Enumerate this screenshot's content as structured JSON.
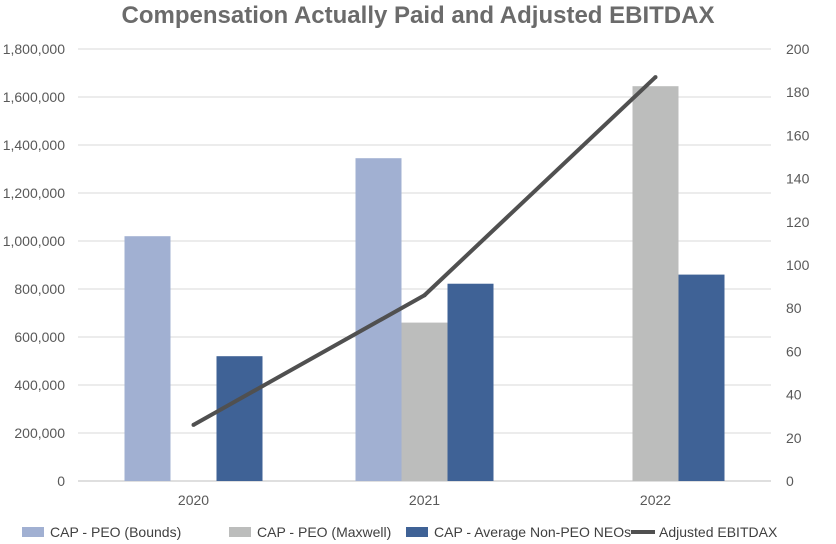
{
  "chart_data": {
    "type": "bar",
    "title": "Compensation Actually Paid and Adjusted EBITDAX",
    "categories": [
      "2020",
      "2021",
      "2022"
    ],
    "series": [
      {
        "name": "CAP - PEO (Bounds)",
        "kind": "bar",
        "axis": "left",
        "color": "#a1b0d2",
        "values": [
          1020000,
          1345000,
          null
        ]
      },
      {
        "name": "CAP - PEO (Maxwell)",
        "kind": "bar",
        "axis": "left",
        "color": "#bcbdbc",
        "values": [
          null,
          660000,
          1645000
        ]
      },
      {
        "name": "CAP - Average Non-PEO NEOs",
        "kind": "bar",
        "axis": "left",
        "color": "#3f6296",
        "values": [
          520000,
          822000,
          860000
        ]
      },
      {
        "name": "Adjusted EBITDAX",
        "kind": "line",
        "axis": "right",
        "color": "#505050",
        "values": [
          26,
          86,
          187
        ]
      }
    ],
    "y_left": {
      "min": 0,
      "max": 1800000,
      "ticks": [
        "0",
        "200,000",
        "400,000",
        "600,000",
        "800,000",
        "1,000,000",
        "1,200,000",
        "1,400,000",
        "1,600,000",
        "1,800,000"
      ]
    },
    "y_right": {
      "min": 0,
      "max": 200,
      "ticks": [
        "0",
        "20",
        "40",
        "60",
        "80",
        "100",
        "120",
        "140",
        "160",
        "180",
        "200"
      ]
    },
    "grid": true,
    "legend_position": "bottom"
  }
}
